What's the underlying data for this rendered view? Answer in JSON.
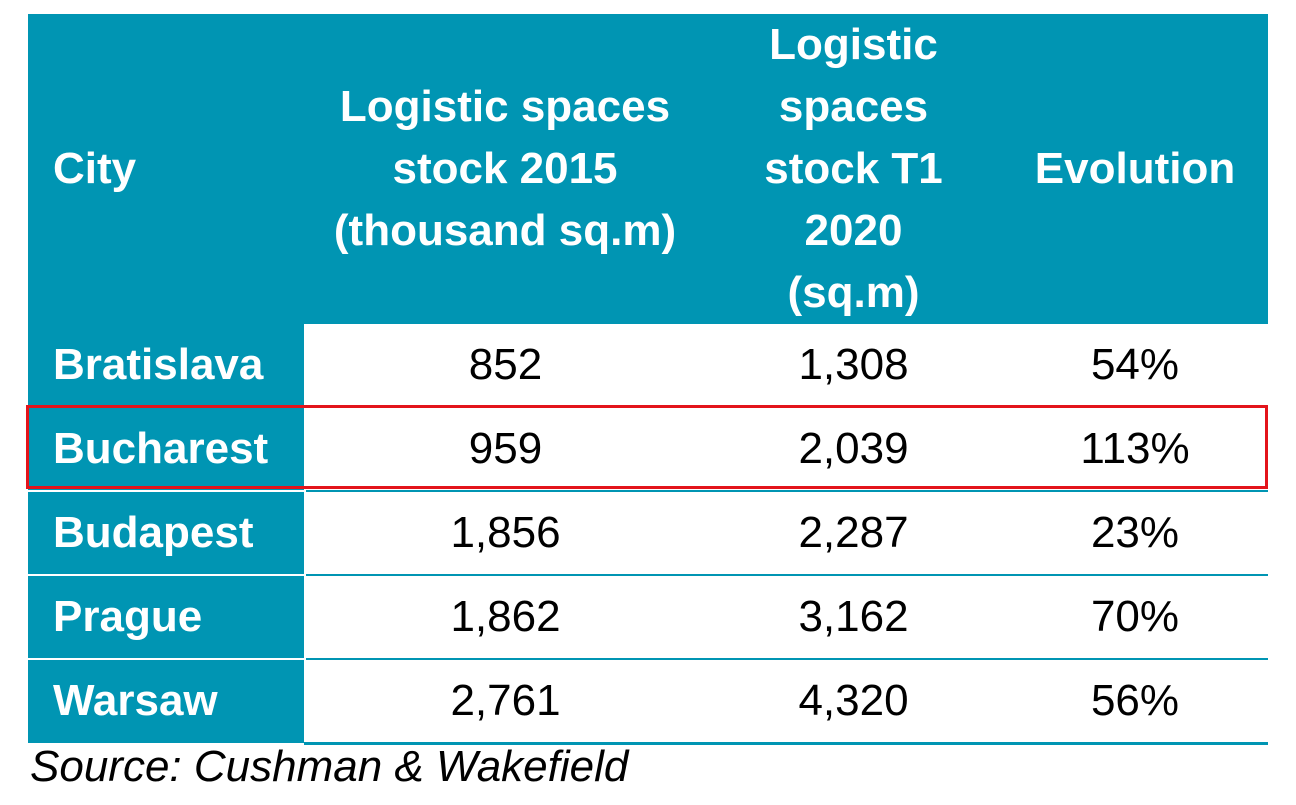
{
  "chart_data": {
    "type": "table",
    "columns": [
      "City",
      "Logistic spaces stock 2015 (thousand sq.m)",
      "Logistic spaces stock T1 2020 (sq.m)",
      "Evolution"
    ],
    "rows": [
      {
        "city": "Bratislava",
        "stock_2015": "852",
        "stock_2020": "1,308",
        "evolution": "54%"
      },
      {
        "city": "Bucharest",
        "stock_2015": "959",
        "stock_2020": "2,039",
        "evolution": "113%"
      },
      {
        "city": "Budapest",
        "stock_2015": "1,856",
        "stock_2020": "2,287",
        "evolution": "23%"
      },
      {
        "city": "Prague",
        "stock_2015": "1,862",
        "stock_2020": "3,162",
        "evolution": "70%"
      },
      {
        "city": "Warsaw",
        "stock_2015": "2,761",
        "stock_2020": "4,320",
        "evolution": "56%"
      }
    ],
    "highlighted_row": "Bucharest",
    "source": "Source: Cushman & Wakefield"
  },
  "colors": {
    "header_background": "#0095b3",
    "highlight_border": "#e3141b",
    "text": "#000000"
  }
}
